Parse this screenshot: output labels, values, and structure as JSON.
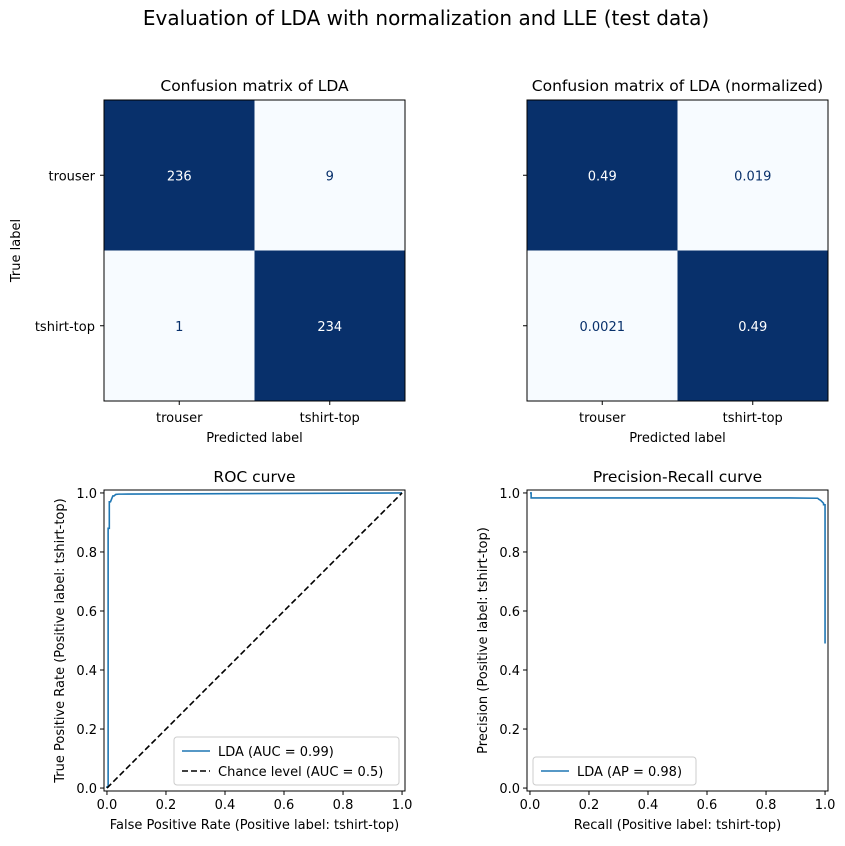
{
  "suptitle": "Evaluation of LDA with normalization and LLE (test data)",
  "colors": {
    "dark_cell": "#08306b",
    "light_cell": "#f7fbff",
    "dark_text": "#08306b",
    "light_text": "#ffffff",
    "curve": "#1f77b4",
    "chance": "#000000"
  },
  "chart_data": [
    {
      "type": "heatmap",
      "id": "cm",
      "title": "Confusion matrix of LDA",
      "xlabel": "Predicted label",
      "ylabel": "True label",
      "x_categories": [
        "trouser",
        "tshirt-top"
      ],
      "y_categories": [
        "trouser",
        "tshirt-top"
      ],
      "values": [
        [
          236,
          9
        ],
        [
          1,
          234
        ]
      ],
      "cell_labels": [
        [
          "236",
          "9"
        ],
        [
          "1",
          "234"
        ]
      ]
    },
    {
      "type": "heatmap",
      "id": "cmn",
      "title": "Confusion matrix of LDA (normalized)",
      "xlabel": "Predicted label",
      "ylabel": "",
      "x_categories": [
        "trouser",
        "tshirt-top"
      ],
      "y_categories": [
        "",
        ""
      ],
      "values": [
        [
          0.49,
          0.019
        ],
        [
          0.0021,
          0.49
        ]
      ],
      "cell_labels": [
        [
          "0.49",
          "0.019"
        ],
        [
          "0.0021",
          "0.49"
        ]
      ]
    },
    {
      "type": "line",
      "id": "roc",
      "title": "ROC curve",
      "xlabel": "False Positive Rate (Positive label: tshirt-top)",
      "ylabel": "True Positive Rate (Positive label: tshirt-top)",
      "xlim": [
        0,
        1
      ],
      "ylim": [
        0,
        1
      ],
      "x_ticks": [
        "0.0",
        "0.2",
        "0.4",
        "0.6",
        "0.8",
        "1.0"
      ],
      "y_ticks": [
        "0.0",
        "0.2",
        "0.4",
        "0.6",
        "0.8",
        "1.0"
      ],
      "legend_position": "bottom-right",
      "series": [
        {
          "name": "LDA (AUC = 0.99)",
          "style": "solid",
          "x": [
            0.0,
            0.0,
            0.004,
            0.004,
            0.008,
            0.008,
            0.012,
            0.016,
            0.016,
            0.02,
            0.024,
            0.03,
            0.04,
            0.05,
            1.0
          ],
          "y": [
            0.0,
            0.004,
            0.004,
            0.88,
            0.88,
            0.97,
            0.97,
            0.98,
            0.98,
            0.99,
            0.99,
            0.995,
            0.996,
            0.996,
            1.0
          ]
        },
        {
          "name": "Chance level (AUC = 0.5)",
          "style": "dashed",
          "x": [
            0.0,
            1.0
          ],
          "y": [
            0.0,
            1.0
          ]
        }
      ]
    },
    {
      "type": "line",
      "id": "pr",
      "title": "Precision-Recall curve",
      "xlabel": "Recall (Positive label: tshirt-top)",
      "ylabel": "Precision (Positive label: tshirt-top)",
      "xlim": [
        0,
        1
      ],
      "ylim": [
        0,
        1
      ],
      "x_ticks": [
        "0.0",
        "0.2",
        "0.4",
        "0.6",
        "0.8",
        "1.0"
      ],
      "y_ticks": [
        "0.0",
        "0.2",
        "0.4",
        "0.6",
        "0.8",
        "1.0"
      ],
      "legend_position": "bottom-left",
      "series": [
        {
          "name": "LDA (AP = 0.98)",
          "style": "solid",
          "x": [
            0.0,
            0.004,
            0.004,
            0.88,
            0.975,
            0.98,
            0.985,
            0.99,
            0.995,
            0.995,
            1.0,
            1.0
          ],
          "y": [
            1.0,
            1.0,
            0.983,
            0.983,
            0.982,
            0.978,
            0.975,
            0.97,
            0.965,
            0.96,
            0.96,
            0.49
          ]
        }
      ]
    }
  ]
}
